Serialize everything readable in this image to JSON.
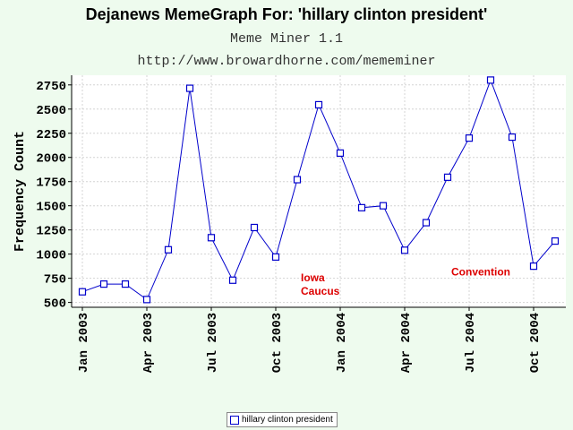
{
  "chart_data": {
    "type": "line",
    "title": "Dejanews MemeGraph For: 'hillary clinton president'",
    "subtitles": [
      "Meme Miner 1.1",
      "http://www.browardhorne.com/mememiner"
    ],
    "ylabel": "Frequency Count",
    "xlabel": "",
    "ylim": [
      450,
      2850
    ],
    "yticks": [
      500,
      750,
      1000,
      1250,
      1500,
      1750,
      2000,
      2250,
      2500,
      2750
    ],
    "xlim": [
      "2003-01",
      "2004-12"
    ],
    "xticks": [
      {
        "month": "2003-01",
        "label": "Jan 2003"
      },
      {
        "month": "2003-04",
        "label": "Apr 2003"
      },
      {
        "month": "2003-07",
        "label": "Jul 2003"
      },
      {
        "month": "2003-10",
        "label": "Oct 2003"
      },
      {
        "month": "2004-01",
        "label": "Jan 2004"
      },
      {
        "month": "2004-04",
        "label": "Apr 2004"
      },
      {
        "month": "2004-07",
        "label": "Jul 2004"
      },
      {
        "month": "2004-10",
        "label": "Oct 2004"
      }
    ],
    "grid": true,
    "legend_position": "bottom",
    "series": [
      {
        "name": "hillary clinton president",
        "color": "#0000cc",
        "x": [
          "2003-01",
          "2003-02",
          "2003-03",
          "2003-04",
          "2003-05",
          "2003-06",
          "2003-07",
          "2003-08",
          "2003-09",
          "2003-10",
          "2003-11",
          "2003-12",
          "2004-01",
          "2004-02",
          "2004-03",
          "2004-04",
          "2004-05",
          "2004-06",
          "2004-07",
          "2004-08",
          "2004-09",
          "2004-10",
          "2004-11"
        ],
        "values": [
          610,
          690,
          690,
          530,
          1045,
          2715,
          1170,
          730,
          1275,
          970,
          1770,
          2545,
          2045,
          1480,
          1500,
          1040,
          1325,
          1795,
          2200,
          2800,
          2210,
          875,
          1135
        ]
      }
    ],
    "annotations": [
      {
        "text": "Iowa\nCaucus",
        "month": "2003-12",
        "value": 720,
        "color": "#dd0000"
      },
      {
        "text": "Convention",
        "month": "2004-07",
        "value": 780,
        "color": "#dd0000"
      }
    ]
  }
}
